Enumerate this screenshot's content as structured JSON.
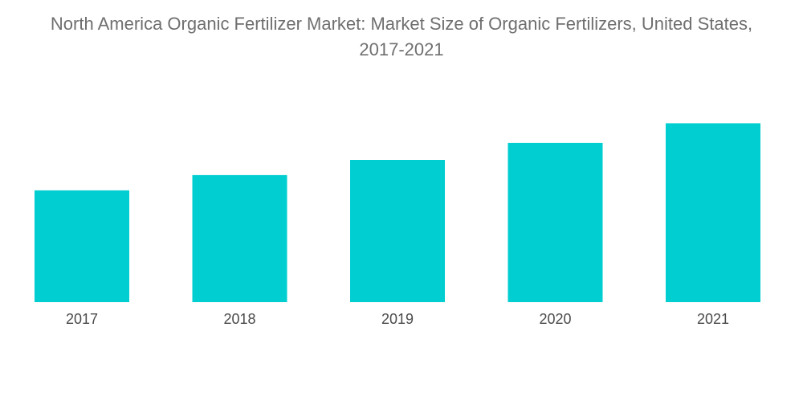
{
  "chart_data": {
    "type": "bar",
    "title_lines": [
      "North America Organic Fertilizer Market: Market Size of Organic Fertilizers, United States,",
      "2017-2021"
    ],
    "categories": [
      "2017",
      "2018",
      "2019",
      "2020",
      "2021"
    ],
    "series": [
      {
        "values": [
          125,
          142,
          159,
          178,
          200
        ]
      }
    ],
    "xlabel": "",
    "ylabel": "",
    "ylim": [
      0,
      230
    ],
    "grid": false,
    "legend": "none",
    "y_axis_labels_shown": false
  },
  "colors": {
    "bar": "#00CED1",
    "title": "#6f6f6f",
    "tick_text": "#4a4a4a",
    "background": "#ffffff"
  }
}
